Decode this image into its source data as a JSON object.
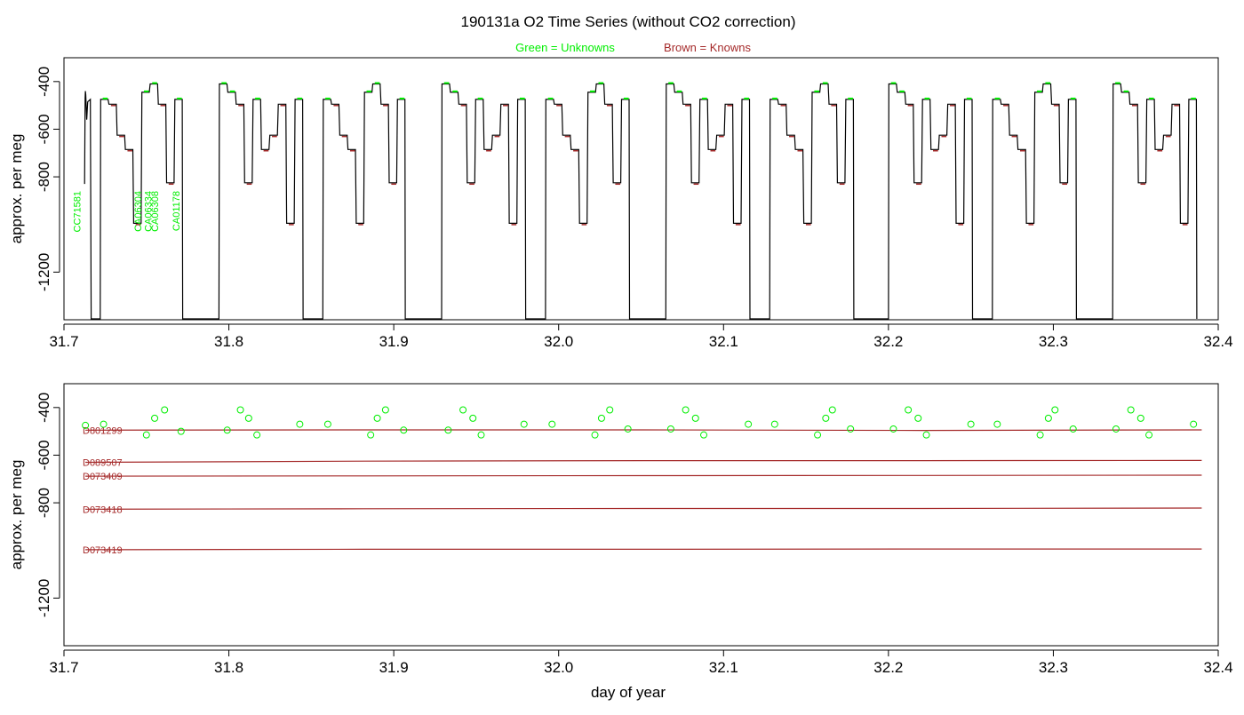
{
  "title": "190131a   O2 Time Series (without CO2 correction)",
  "legend": {
    "unknowns_label": "Green = Unknowns",
    "knowns_label": "Brown = Knowns",
    "unknowns_color": "#00ee00",
    "knowns_color": "#a52a2a"
  },
  "xlabel": "day of year",
  "trace_color": "#000000",
  "chart_data": [
    {
      "type": "line",
      "ylabel": "approx. per meg",
      "xlim": [
        31.7,
        32.4
      ],
      "ylim": [
        -1400,
        -300
      ],
      "y_reversed": true,
      "xticks": [
        "31.7",
        "31.8",
        "31.9",
        "32.0",
        "32.1",
        "32.2",
        "32.3",
        "32.4"
      ],
      "yticks": [
        "-400",
        "-600",
        "-800",
        "-1200"
      ],
      "ytick_values": [
        -400,
        -600,
        -800,
        -1200
      ],
      "grid": false,
      "levels": {
        "D801299": -495,
        "D089507": -625,
        "D073409": -685,
        "D073418": -825,
        "D073419": -995,
        "U1": -475,
        "U2": -445,
        "U3": -410
      },
      "sequence_A": [
        "U1",
        "D801299",
        "D089507",
        "D073409",
        "D073419",
        "U2",
        "U3",
        "D801299",
        "D073418",
        "U1"
      ],
      "sequence_B": [
        "U3",
        "U2",
        "D801299",
        "D073418",
        "U1",
        "D073409",
        "D089507",
        "D801299",
        "D073419",
        "U1"
      ],
      "cycles": [
        {
          "start": 31.722,
          "end": 31.772,
          "pattern": "A"
        },
        {
          "start": 31.794,
          "end": 31.845,
          "pattern": "B"
        },
        {
          "start": 31.857,
          "end": 31.907,
          "pattern": "A"
        },
        {
          "start": 31.929,
          "end": 31.98,
          "pattern": "B"
        },
        {
          "start": 31.992,
          "end": 32.043,
          "pattern": "A"
        },
        {
          "start": 32.065,
          "end": 32.116,
          "pattern": "B"
        },
        {
          "start": 32.128,
          "end": 32.179,
          "pattern": "A"
        },
        {
          "start": 32.2,
          "end": 32.251,
          "pattern": "B"
        },
        {
          "start": 32.263,
          "end": 32.314,
          "pattern": "A"
        },
        {
          "start": 32.336,
          "end": 32.387,
          "pattern": "B"
        }
      ],
      "sample_labels": [
        {
          "text": "CC71581",
          "x": 31.71
        },
        {
          "text": "CA06304",
          "x": 31.747
        },
        {
          "text": "CA06334",
          "x": 31.753
        },
        {
          "text": "CA06308",
          "x": 31.757
        },
        {
          "text": "CA01178",
          "x": 31.77
        }
      ]
    },
    {
      "type": "scatter",
      "ylabel": "approx. per meg",
      "xlim": [
        31.7,
        32.4
      ],
      "ylim": [
        -1400,
        -300
      ],
      "y_reversed": true,
      "xticks": [
        "31.7",
        "31.8",
        "31.9",
        "32.0",
        "32.1",
        "32.2",
        "32.3",
        "32.4"
      ],
      "yticks": [
        "-400",
        "-600",
        "-800",
        "-1200"
      ],
      "ytick_values": [
        -400,
        -600,
        -800,
        -1200
      ],
      "grid": false,
      "reference_lines": [
        {
          "name": "D801299",
          "x_range": [
            31.713,
            32.39
          ],
          "y": [
            -495,
            -494,
            -494,
            -496,
            -494
          ]
        },
        {
          "name": "D089507",
          "x_range": [
            31.713,
            32.39
          ],
          "y": [
            -630,
            -625,
            -623,
            -623,
            -622
          ]
        },
        {
          "name": "D073409",
          "x_range": [
            31.713,
            32.39
          ],
          "y": [
            -688,
            -687,
            -686,
            -685,
            -684
          ]
        },
        {
          "name": "D073418",
          "x_range": [
            31.713,
            32.39
          ],
          "y": [
            -827,
            -825,
            -824,
            -824,
            -822
          ]
        },
        {
          "name": "D073419",
          "x_range": [
            31.713,
            32.39
          ],
          "y": [
            -997,
            -995,
            -995,
            -994,
            -994
          ]
        }
      ],
      "unknowns": {
        "x": [
          31.713,
          31.724,
          31.75,
          31.755,
          31.761,
          31.771,
          31.799,
          31.807,
          31.812,
          31.817,
          31.843,
          31.86,
          31.886,
          31.89,
          31.895,
          31.906,
          31.933,
          31.942,
          31.948,
          31.953,
          31.979,
          31.996,
          32.022,
          32.026,
          32.031,
          32.042,
          32.068,
          32.077,
          32.083,
          32.088,
          32.115,
          32.131,
          32.157,
          32.162,
          32.166,
          32.177,
          32.203,
          32.212,
          32.218,
          32.223,
          32.25,
          32.266,
          32.292,
          32.297,
          32.301,
          32.312,
          32.338,
          32.347,
          32.353,
          32.358,
          32.385
        ],
        "y": [
          -475,
          -470,
          -515,
          -445,
          -410,
          -500,
          -495,
          -410,
          -445,
          -515,
          -470,
          -470,
          -515,
          -445,
          -410,
          -495,
          -495,
          -410,
          -445,
          -515,
          -470,
          -470,
          -515,
          -445,
          -410,
          -490,
          -490,
          -410,
          -445,
          -515,
          -470,
          -470,
          -515,
          -445,
          -410,
          -490,
          -490,
          -410,
          -445,
          -515,
          -470,
          -470,
          -515,
          -445,
          -410,
          -490,
          -490,
          -410,
          -445,
          -515,
          -470
        ]
      }
    }
  ]
}
